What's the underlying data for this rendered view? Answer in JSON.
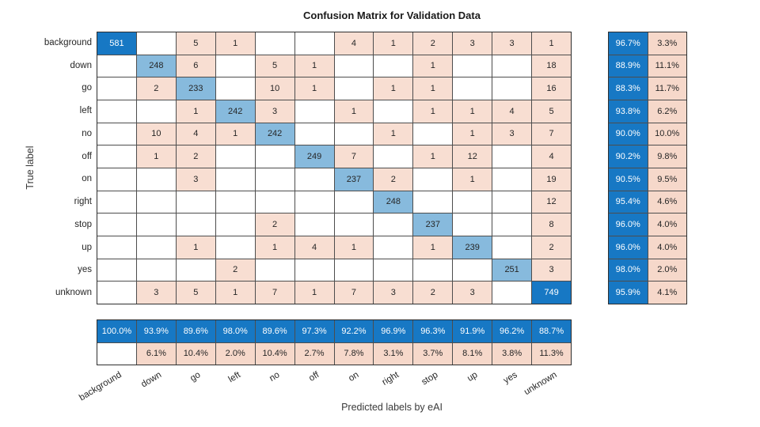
{
  "title": "Confusion Matrix for Validation Data",
  "x_axis_title": "Predicted labels by eAI",
  "y_axis_title": "True label",
  "chart_data": {
    "type": "heatmap",
    "subtype": "confusion-matrix",
    "classes": [
      "background",
      "down",
      "go",
      "left",
      "no",
      "off",
      "on",
      "right",
      "stop",
      "up",
      "yes",
      "unknown"
    ],
    "matrix": [
      [
        581,
        null,
        5,
        1,
        null,
        null,
        4,
        1,
        2,
        3,
        3,
        1
      ],
      [
        null,
        248,
        6,
        null,
        5,
        1,
        null,
        null,
        1,
        null,
        null,
        18
      ],
      [
        null,
        2,
        233,
        null,
        10,
        1,
        null,
        1,
        1,
        null,
        null,
        16
      ],
      [
        null,
        null,
        1,
        242,
        3,
        null,
        1,
        null,
        1,
        1,
        4,
        5
      ],
      [
        null,
        10,
        4,
        1,
        242,
        null,
        null,
        1,
        null,
        1,
        3,
        7
      ],
      [
        null,
        1,
        2,
        null,
        null,
        249,
        7,
        null,
        1,
        12,
        null,
        4
      ],
      [
        null,
        null,
        3,
        null,
        null,
        null,
        237,
        2,
        null,
        1,
        null,
        19
      ],
      [
        null,
        null,
        null,
        null,
        null,
        null,
        null,
        248,
        null,
        null,
        null,
        12
      ],
      [
        null,
        null,
        null,
        null,
        2,
        null,
        null,
        null,
        237,
        null,
        null,
        8
      ],
      [
        null,
        null,
        1,
        null,
        1,
        4,
        1,
        null,
        1,
        239,
        null,
        2
      ],
      [
        null,
        null,
        null,
        2,
        null,
        null,
        null,
        null,
        null,
        null,
        251,
        3
      ],
      [
        null,
        3,
        5,
        1,
        7,
        1,
        7,
        3,
        2,
        3,
        null,
        749
      ]
    ],
    "row_summary": [
      [
        "96.7%",
        "3.3%"
      ],
      [
        "88.9%",
        "11.1%"
      ],
      [
        "88.3%",
        "11.7%"
      ],
      [
        "93.8%",
        "6.2%"
      ],
      [
        "90.0%",
        "10.0%"
      ],
      [
        "90.2%",
        "9.8%"
      ],
      [
        "90.5%",
        "9.5%"
      ],
      [
        "95.4%",
        "4.6%"
      ],
      [
        "96.0%",
        "4.0%"
      ],
      [
        "96.0%",
        "4.0%"
      ],
      [
        "98.0%",
        "2.0%"
      ],
      [
        "95.9%",
        "4.1%"
      ]
    ],
    "col_summary_top": [
      "100.0%",
      "93.9%",
      "89.6%",
      "98.0%",
      "89.6%",
      "97.3%",
      "92.2%",
      "96.9%",
      "96.3%",
      "91.9%",
      "96.2%",
      "88.7%"
    ],
    "col_summary_bottom": [
      "",
      "6.1%",
      "10.4%",
      "2.0%",
      "10.4%",
      "2.7%",
      "7.8%",
      "3.1%",
      "3.7%",
      "8.1%",
      "3.8%",
      "11.3%"
    ],
    "colors": {
      "diagonal_dark_blue": "#1778c4",
      "diagonal_light_blue": "#87badd",
      "off_diagonal_peach": "#f8ded2",
      "summary_blue": "#1778c4",
      "summary_peach": "#f6d8ca",
      "empty_cell": "#ffffff",
      "text_dark": "#262626",
      "text_light": "#ffffff"
    },
    "diagonal_dark_threshold": 500,
    "legend_position": "none",
    "grid": true
  }
}
